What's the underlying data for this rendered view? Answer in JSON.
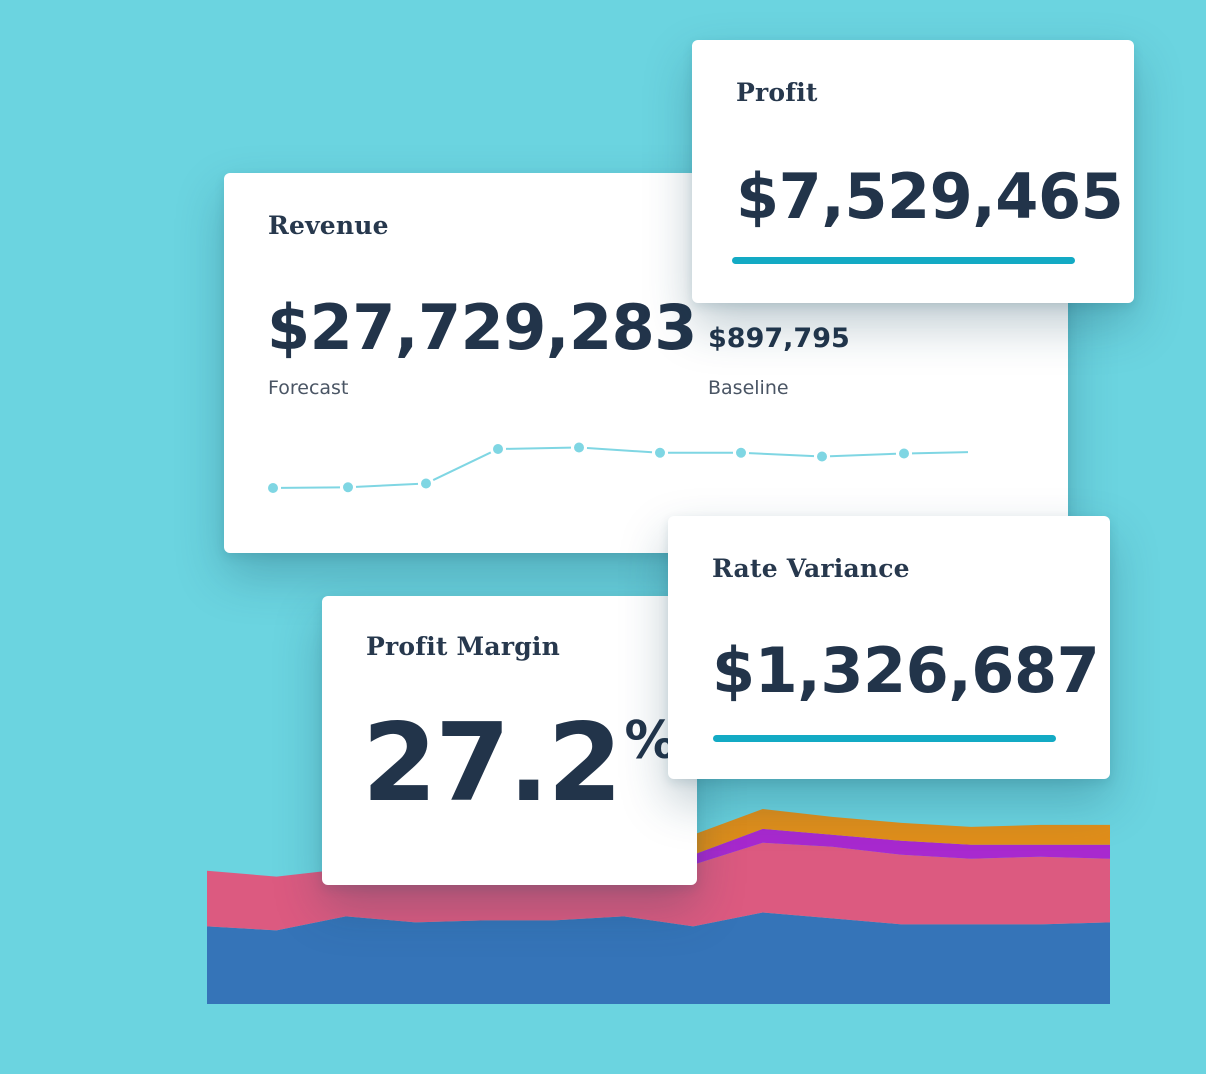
{
  "colors": {
    "background": "#6bd4e0",
    "accent": "#13aac4",
    "spark": "#7fd6e3",
    "area_blue": "#3574b8",
    "area_pink": "#dc5a80",
    "area_purple": "#a829cf",
    "area_orange": "#e08e1a"
  },
  "revenue": {
    "title": "Revenue",
    "value": "$27,729,283",
    "forecast_label": "Forecast",
    "baseline_value": "$897,795",
    "baseline_label": "Baseline"
  },
  "profit": {
    "title": "Profit",
    "value": "$7,529,465"
  },
  "profit_margin": {
    "title": "Profit Margin",
    "value": "27.2",
    "unit": "%"
  },
  "rate_variance": {
    "title": "Rate Variance",
    "value": "$1,326,687"
  },
  "chart_data": [
    {
      "type": "line",
      "x": [
        1,
        2,
        3,
        4,
        5,
        6,
        7,
        8,
        9,
        10
      ],
      "values": [
        2.0,
        2.05,
        2.3,
        4.6,
        4.7,
        4.35,
        4.35,
        4.1,
        4.3,
        4.4
      ],
      "markers": [
        true,
        true,
        true,
        true,
        true,
        true,
        true,
        true,
        true,
        false
      ],
      "ylim": [
        0,
        6
      ]
    },
    {
      "type": "area",
      "stacked": true,
      "x": [
        0,
        1,
        2,
        3,
        4,
        5,
        6,
        7,
        8,
        9,
        10,
        11,
        12,
        13
      ],
      "ylim": [
        0,
        1
      ],
      "series": [
        {
          "color_key": "area_blue",
          "values": [
            0.39,
            0.37,
            0.44,
            0.41,
            0.42,
            0.42,
            0.44,
            0.39,
            0.46,
            0.43,
            0.4,
            0.4,
            0.4,
            0.41
          ]
        },
        {
          "color_key": "area_pink",
          "values": [
            0.28,
            0.27,
            0.24,
            0.27,
            0.27,
            0.28,
            0.28,
            0.31,
            0.35,
            0.36,
            0.35,
            0.33,
            0.34,
            0.32
          ]
        },
        {
          "color_key": "area_purple",
          "values": [
            0.0,
            0.0,
            0.0,
            0.0,
            0.0,
            0.0,
            0.0,
            0.05,
            0.07,
            0.06,
            0.07,
            0.07,
            0.06,
            0.07
          ]
        },
        {
          "color_key": "area_orange",
          "values": [
            0.0,
            0.0,
            0.0,
            0.0,
            0.0,
            0.0,
            0.0,
            0.1,
            0.1,
            0.09,
            0.09,
            0.09,
            0.1,
            0.1
          ]
        }
      ]
    }
  ]
}
